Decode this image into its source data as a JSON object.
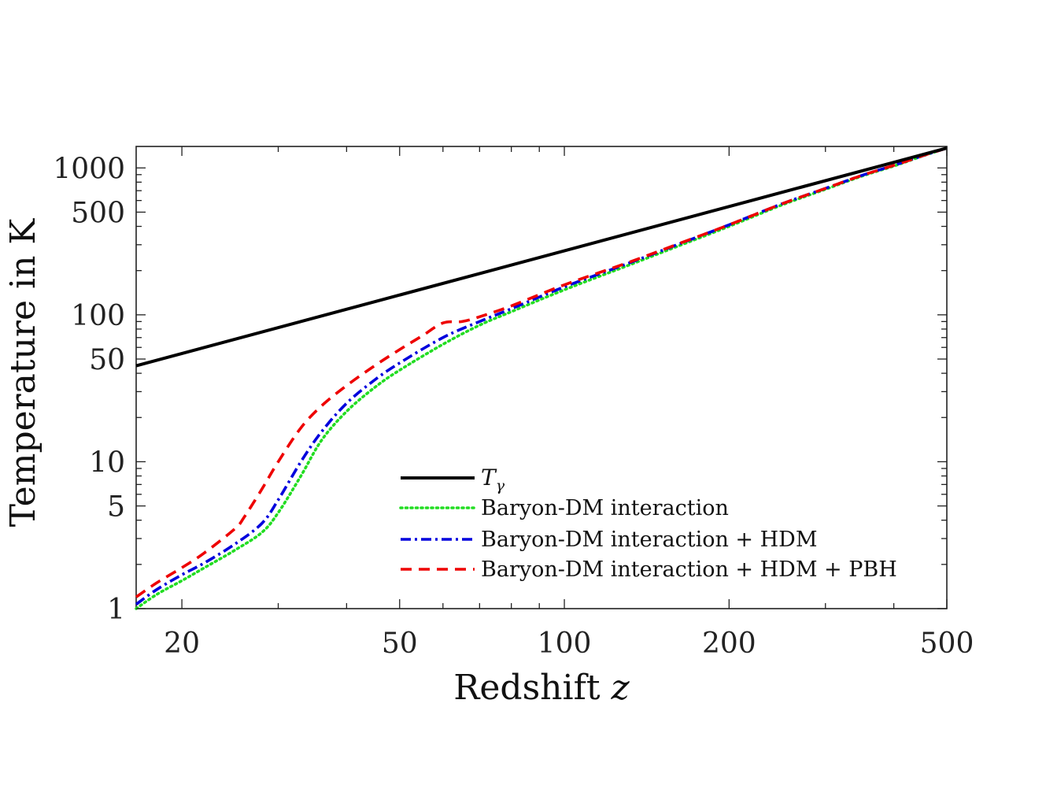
{
  "chart_data": {
    "type": "line",
    "title": "",
    "xlabel": "Redshift",
    "xlabel_var": "z",
    "ylabel": "Temperature in K",
    "xscale": "log",
    "yscale": "log",
    "xlim": [
      16.5,
      500
    ],
    "ylim": [
      1,
      1400
    ],
    "xticks": [
      20,
      50,
      100,
      200,
      500
    ],
    "xtick_labels": [
      "20",
      "50",
      "100",
      "200",
      "500"
    ],
    "yticks": [
      1,
      5,
      10,
      50,
      100,
      500,
      1000
    ],
    "ytick_labels": [
      "1",
      "5",
      "10",
      "50",
      "100",
      "500",
      "1000"
    ],
    "legend_position": "lower-center",
    "grid": false,
    "series": [
      {
        "name": "T_γ",
        "legend_main": "T",
        "legend_sub": "γ",
        "color": "#000000",
        "style": "solid",
        "x": [
          16.5,
          500
        ],
        "y": [
          45,
          1365
        ]
      },
      {
        "name": "Baryon-DM interaction",
        "color": "#22dd22",
        "style": "dotted",
        "x": [
          16.5,
          18,
          20,
          22,
          25,
          28,
          30,
          33,
          36,
          40,
          45,
          50,
          60,
          70,
          80,
          100,
          130,
          160,
          200,
          250,
          300,
          350,
          400,
          450,
          500
        ],
        "y": [
          1.0,
          1.25,
          1.55,
          1.9,
          2.5,
          3.3,
          4.5,
          8.0,
          14,
          22,
          32,
          42,
          63,
          85,
          105,
          148,
          215,
          290,
          400,
          560,
          715,
          880,
          1030,
          1200,
          1365
        ]
      },
      {
        "name": "Baryon-DM interaction + HDM",
        "color": "#0000dd",
        "style": "dashdot",
        "x": [
          16.5,
          18,
          20,
          22,
          25,
          28,
          30,
          33,
          36,
          40,
          45,
          50,
          60,
          70,
          80,
          100,
          130,
          160,
          200,
          250,
          300,
          350,
          400,
          450,
          500
        ],
        "y": [
          1.07,
          1.35,
          1.7,
          2.05,
          2.75,
          3.8,
          5.5,
          10,
          16,
          25,
          36,
          47,
          70,
          90,
          110,
          155,
          222,
          298,
          410,
          570,
          725,
          890,
          1040,
          1205,
          1365
        ]
      },
      {
        "name": "Baryon-DM interaction + HDM + PBH",
        "color": "#ee0000",
        "style": "dashed",
        "x": [
          16.5,
          18,
          20,
          22,
          25,
          26,
          28,
          30,
          33,
          36,
          40,
          45,
          50,
          55,
          60,
          65,
          70,
          80,
          100,
          130,
          160,
          200,
          250,
          300,
          350,
          400,
          450,
          500
        ],
        "y": [
          1.2,
          1.5,
          1.9,
          2.4,
          3.5,
          4.2,
          6.5,
          10,
          17,
          24,
          33,
          45,
          58,
          72,
          88,
          90,
          97,
          115,
          160,
          225,
          300,
          410,
          570,
          725,
          890,
          1040,
          1205,
          1365
        ]
      }
    ]
  }
}
